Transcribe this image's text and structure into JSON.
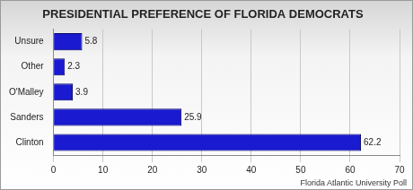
{
  "chart_data": {
    "type": "bar",
    "orientation": "horizontal",
    "title": "PRESIDENTIAL PREFERENCE OF FLORIDA DEMOCRATS",
    "categories": [
      "Unsure",
      "Other",
      "O'Malley",
      "Sanders",
      "Clinton"
    ],
    "values": [
      5.8,
      2.3,
      3.9,
      25.9,
      62.2
    ],
    "color": "#1a1ad0",
    "xlim": [
      0,
      70
    ],
    "xticks": [
      0,
      10,
      20,
      30,
      40,
      50,
      60,
      70
    ],
    "grid": true,
    "data_labels": true,
    "annotations": [
      "Florida Atlantic University Poll"
    ]
  }
}
